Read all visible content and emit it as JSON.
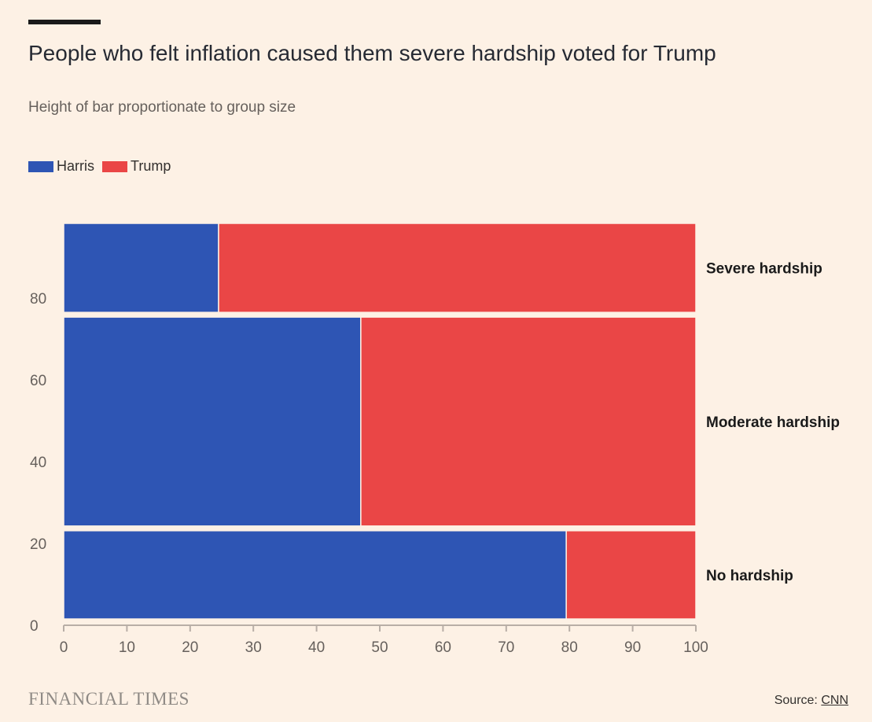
{
  "title": "People who felt inflation caused them severe hardship voted for Trump",
  "subtitle": "Height of bar proportionate to group size",
  "legend": [
    {
      "label": "Harris",
      "color": "#2e55b4"
    },
    {
      "label": "Trump",
      "color": "#ea4646"
    }
  ],
  "footer": {
    "brand": "FINANCIAL TIMES",
    "source_prefix": "Source: ",
    "source_link": "CNN"
  },
  "chart_data": {
    "type": "marimekko",
    "title": "People who felt inflation caused them severe hardship voted for Trump",
    "subtitle": "Height of bar proportionate to group size",
    "xlim": [
      0,
      100
    ],
    "ylim": [
      0,
      100
    ],
    "x_ticks": [
      0,
      10,
      20,
      30,
      40,
      50,
      60,
      70,
      80,
      90,
      100
    ],
    "y_ticks": [
      0,
      20,
      40,
      60,
      80
    ],
    "groups": [
      {
        "label": "Severe hardship",
        "y_start": 77.5,
        "y_end": 100,
        "Harris": 24.5,
        "Trump": 75.5
      },
      {
        "label": "Moderate hardship",
        "y_start": 23.5,
        "y_end": 77.5,
        "Harris": 47,
        "Trump": 53
      },
      {
        "label": "No hardship",
        "y_start": 0,
        "y_end": 23.5,
        "Harris": 79.5,
        "Trump": 20.5
      }
    ],
    "series": [
      {
        "name": "Harris",
        "color": "#2e55b4"
      },
      {
        "name": "Trump",
        "color": "#ea4646"
      }
    ],
    "legend_position": "top-left",
    "grid": false
  }
}
